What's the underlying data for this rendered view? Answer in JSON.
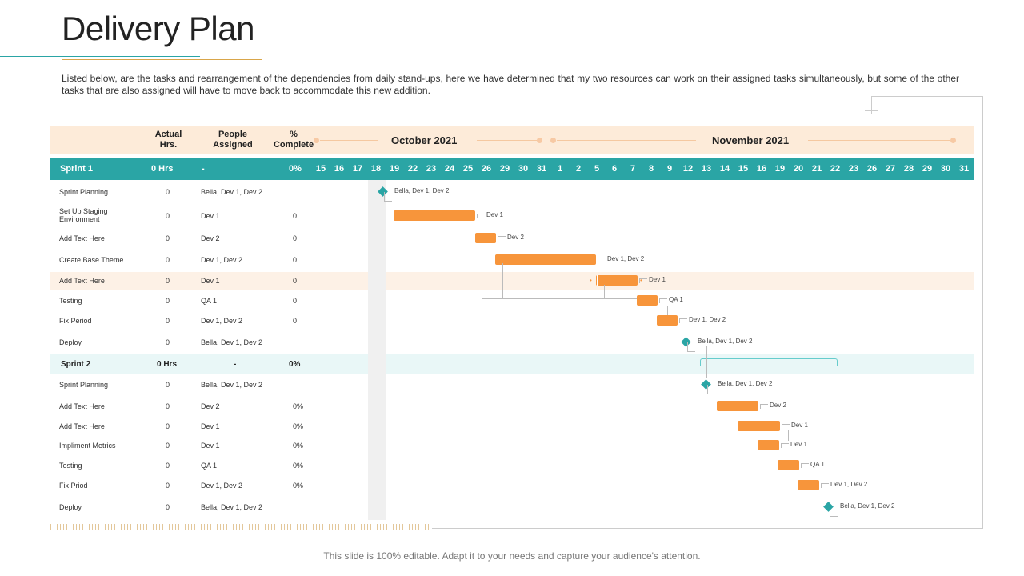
{
  "title": "Delivery Plan",
  "description": "Listed below, are the tasks and rearrangement  of the dependencies from daily stand-ups, here we have determined that my two resources can work on their assigned tasks simultaneously, but some of the other tasks that are also assigned will have to move back to accommodate this new addition.",
  "footer": "This slide is 100% editable. Adapt it to your needs and capture your audience's attention.",
  "columns": {
    "hrs": "Actual Hrs.",
    "people": "People Assigned",
    "complete": "% Complete"
  },
  "months": {
    "oct": "October 2021",
    "nov": "November 2021"
  },
  "sprint1": {
    "name": "Sprint 1",
    "hrs": "0 Hrs",
    "people": "-",
    "complete": "0%"
  },
  "sprint2": {
    "name": "Sprint 2",
    "hrs": "0 Hrs",
    "people": "-",
    "complete": "0%"
  },
  "days": [
    "15",
    "16",
    "17",
    "18",
    "19",
    "22",
    "23",
    "24",
    "25",
    "26",
    "29",
    "30",
    "31",
    "1",
    "2",
    "5",
    "6",
    "7",
    "8",
    "9",
    "12",
    "13",
    "14",
    "15",
    "16",
    "19",
    "20",
    "21",
    "22",
    "23",
    "26",
    "27",
    "28",
    "29",
    "30",
    "31"
  ],
  "tasks": [
    {
      "name": "Sprint Planning",
      "hrs": "0",
      "people": "Bella, Dev 1, Dev 2",
      "complete": "",
      "label": "Bella, Dev 1, Dev 2"
    },
    {
      "name": "Set Up Staging Environment",
      "hrs": "0",
      "people": "Dev 1",
      "complete": "0",
      "label": "Dev 1"
    },
    {
      "name": "Add Text Here",
      "hrs": "0",
      "people": "Dev 2",
      "complete": "0",
      "label": "Dev 2"
    },
    {
      "name": "Create Base Theme",
      "hrs": "0",
      "people": "Dev 1, Dev 2",
      "complete": "0",
      "label": "Dev 1, Dev 2"
    },
    {
      "name": "Add Text Here",
      "hrs": "0",
      "people": "Dev 1",
      "complete": "0",
      "label": "Dev 1"
    },
    {
      "name": "Testing",
      "hrs": "0",
      "people": "QA 1",
      "complete": "0",
      "label": "QA 1"
    },
    {
      "name": "Fix Period",
      "hrs": "0",
      "people": "Dev 1, Dev 2",
      "complete": "0",
      "label": "Dev 1, Dev 2"
    },
    {
      "name": "Deploy",
      "hrs": "0",
      "people": "Bella, Dev 1, Dev 2",
      "complete": "",
      "label": "Bella, Dev 1, Dev 2"
    },
    {
      "name": "Sprint Planning",
      "hrs": "0",
      "people": "Bella, Dev 1, Dev 2",
      "complete": "",
      "label": "Bella, Dev 1, Dev 2"
    },
    {
      "name": "Add Text Here",
      "hrs": "0",
      "people": "Dev 2",
      "complete": "0%",
      "label": "Dev 2"
    },
    {
      "name": "Add Text Here",
      "hrs": "0",
      "people": "Dev 1",
      "complete": "0%",
      "label": "Dev 1"
    },
    {
      "name": "Impliment Metrics",
      "hrs": "0",
      "people": "Dev 1",
      "complete": "0%",
      "label": "Dev 1"
    },
    {
      "name": "Testing",
      "hrs": "0",
      "people": "QA 1",
      "complete": "0%",
      "label": "QA 1"
    },
    {
      "name": "Fix Priod",
      "hrs": "0",
      "people": "Dev 1, Dev 2",
      "complete": "0%",
      "label": "Dev 1, Dev 2"
    },
    {
      "name": "Deploy",
      "hrs": "0",
      "people": "Bella, Dev 1, Dev 2",
      "complete": "",
      "label": "Bella, Dev 1, Dev 2"
    }
  ],
  "colors": {
    "teal": "#2aa5a5",
    "orange": "#f7953b",
    "peach": "#fdebd9",
    "lightTeal": "#e9f7f7"
  }
}
